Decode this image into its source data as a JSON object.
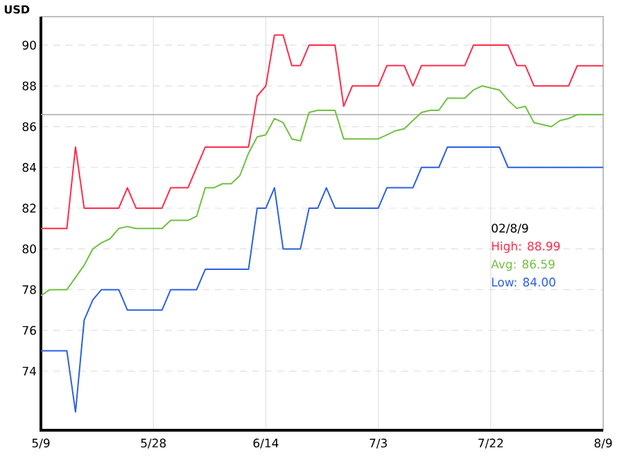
{
  "chart_data": {
    "type": "line",
    "ylabel": "USD",
    "legend_title": "02/8/9",
    "legend": "right",
    "grid": true,
    "marker": "none",
    "categories": [
      "5/9",
      null,
      null,
      null,
      null,
      null,
      null,
      null,
      null,
      null,
      null,
      null,
      null,
      "5/28",
      null,
      null,
      null,
      null,
      null,
      null,
      null,
      null,
      null,
      null,
      null,
      null,
      "6/14",
      null,
      null,
      null,
      null,
      null,
      null,
      null,
      null,
      null,
      null,
      null,
      null,
      "7/3",
      null,
      null,
      null,
      null,
      null,
      null,
      null,
      null,
      null,
      null,
      null,
      null,
      "7/22",
      null,
      null,
      null,
      null,
      null,
      null,
      null,
      null,
      null,
      null,
      null,
      null,
      "8/9"
    ],
    "ylim": [
      71.1,
      91.4
    ],
    "yticks": [
      74,
      76,
      78,
      80,
      82,
      84,
      86,
      88,
      90
    ],
    "series": [
      {
        "name": "High: 88.99",
        "color": "#ff2a4a",
        "values": [
          81,
          81,
          81,
          81,
          85,
          82,
          82,
          82,
          82,
          82,
          83,
          82,
          82,
          82,
          82,
          83,
          83,
          83,
          84,
          85,
          85,
          85,
          85,
          85,
          85,
          87.5,
          88,
          90.5,
          90.5,
          89,
          89,
          90,
          90,
          90,
          90,
          87,
          88,
          88,
          88,
          88,
          89,
          89,
          89,
          88,
          89,
          89,
          89,
          89,
          89,
          89,
          90,
          90,
          90,
          90,
          90,
          89,
          89,
          88,
          88,
          88,
          88,
          88,
          88.99,
          88.99,
          88.99,
          88.99
        ]
      },
      {
        "name": "Avg: 86.59",
        "color": "#70c040",
        "values": [
          77.7,
          78,
          78,
          78,
          78.6,
          79.2,
          80,
          80.3,
          80.5,
          81,
          81.1,
          81,
          81,
          81,
          81,
          81.4,
          81.4,
          81.4,
          81.6,
          83,
          83,
          83.2,
          83.2,
          83.6,
          84.7,
          85.5,
          85.6,
          86.4,
          86.2,
          85.4,
          85.3,
          86.7,
          86.8,
          86.8,
          86.8,
          85.4,
          85.4,
          85.4,
          85.4,
          85.4,
          85.6,
          85.8,
          85.9,
          86.3,
          86.7,
          86.8,
          86.8,
          87.4,
          87.4,
          87.4,
          87.8,
          88,
          87.9,
          87.8,
          87.3,
          86.9,
          87,
          86.2,
          86.1,
          86,
          86.3,
          86.4,
          86.59,
          86.59,
          86.59,
          86.59
        ]
      },
      {
        "name": "Low: 84.00",
        "color": "#2a60e0",
        "values": [
          75,
          75,
          75,
          75,
          72,
          76.5,
          77.5,
          78,
          78,
          78,
          77,
          77,
          77,
          77,
          77,
          78,
          78,
          78,
          78,
          79,
          79,
          79,
          79,
          79,
          79,
          82,
          82,
          83,
          80,
          80,
          80,
          82,
          82,
          83,
          82,
          82,
          82,
          82,
          82,
          82,
          83,
          83,
          83,
          83,
          84,
          84,
          84,
          85,
          85,
          85,
          85,
          85,
          85,
          85,
          84,
          84,
          84,
          84,
          84,
          84,
          84,
          84,
          84,
          84,
          84,
          84.0
        ]
      }
    ],
    "ref_lines": [
      {
        "axis": "y",
        "value": 86.59,
        "color": "#aaaaaa"
      }
    ]
  }
}
